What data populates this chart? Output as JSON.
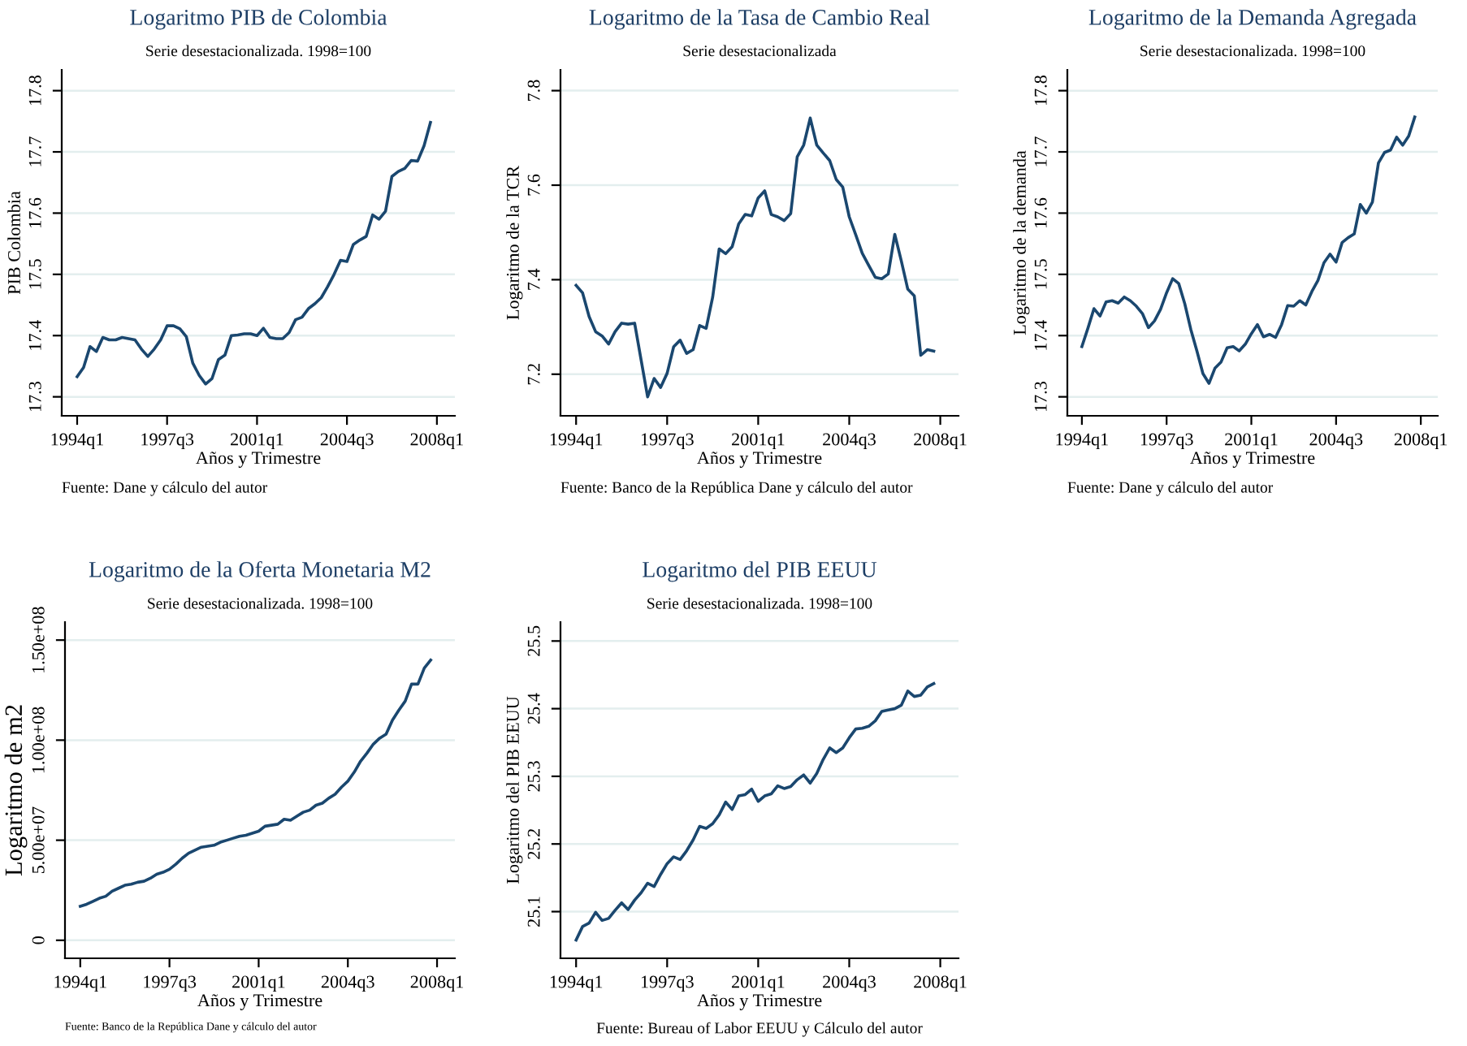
{
  "chart_data": [
    {
      "type": "line",
      "title": "Logaritmo PIB de Colombia",
      "subtitle": "Serie desestacionalizada. 1998=100",
      "xlabel": "Años y Trimestre",
      "ylabel": "PIB Colombia",
      "annotations": [
        "Fuente: Dane y cálculo del autor"
      ],
      "categories": [
        "1994q1",
        null,
        null,
        null,
        null,
        null,
        null,
        null,
        null,
        null,
        null,
        null,
        null,
        null,
        "1997q3",
        null,
        null,
        null,
        null,
        null,
        null,
        null,
        null,
        null,
        null,
        null,
        null,
        null,
        "2001q1",
        null,
        null,
        null,
        null,
        null,
        null,
        null,
        null,
        null,
        null,
        null,
        null,
        null,
        "2004q3",
        null,
        null,
        null,
        null,
        null,
        null,
        null,
        null,
        null,
        null,
        null,
        null,
        null,
        "2008q1"
      ],
      "series": [
        {
          "color": "#1a476f",
          "values": [
            17.333,
            17.348,
            17.382,
            17.374,
            17.397,
            17.393,
            17.393,
            17.397,
            17.395,
            17.393,
            17.378,
            17.366,
            17.378,
            17.393,
            17.416,
            17.416,
            17.411,
            17.398,
            17.355,
            17.335,
            17.321,
            17.33,
            17.361,
            17.368,
            17.4,
            17.401,
            17.403,
            17.403,
            17.4,
            17.412,
            17.397,
            17.395,
            17.395,
            17.405,
            17.426,
            17.43,
            17.444,
            17.452,
            17.462,
            17.48,
            17.5,
            17.523,
            17.521,
            17.549,
            17.556,
            17.562,
            17.597,
            17.59,
            17.603,
            17.66,
            17.668,
            17.673,
            17.686,
            17.685,
            17.71,
            17.748,
            null
          ]
        }
      ],
      "ylim": [
        17.269,
        17.834
      ],
      "yticks": [
        17.3,
        17.4,
        17.5,
        17.6,
        17.7,
        17.8
      ],
      "grid": "y",
      "legend": false
    },
    {
      "type": "line",
      "title": "Logaritmo de la Tasa de Cambio Real",
      "subtitle": "Serie desestacionalizada",
      "xlabel": "Años y Trimestre",
      "ylabel": "Logaritmo de la TCR",
      "annotations": [
        "Fuente: Banco de la República Dane y cálculo del autor"
      ],
      "categories": [
        "1994q1",
        null,
        null,
        null,
        null,
        null,
        null,
        null,
        null,
        null,
        null,
        null,
        null,
        null,
        "1997q3",
        null,
        null,
        null,
        null,
        null,
        null,
        null,
        null,
        null,
        null,
        null,
        null,
        null,
        "2001q1",
        null,
        null,
        null,
        null,
        null,
        null,
        null,
        null,
        null,
        null,
        null,
        null,
        null,
        "2004q3",
        null,
        null,
        null,
        null,
        null,
        null,
        null,
        null,
        null,
        null,
        null,
        null,
        null,
        "2008q1"
      ],
      "series": [
        {
          "color": "#1a476f",
          "values": [
            7.388,
            7.372,
            7.322,
            7.29,
            7.281,
            7.264,
            7.29,
            7.308,
            7.306,
            7.308,
            7.23,
            7.152,
            7.191,
            7.172,
            7.202,
            7.258,
            7.272,
            7.244,
            7.252,
            7.303,
            7.297,
            7.363,
            7.465,
            7.455,
            7.47,
            7.518,
            7.538,
            7.535,
            7.573,
            7.588,
            7.538,
            7.533,
            7.525,
            7.54,
            7.66,
            7.685,
            7.742,
            7.685,
            7.668,
            7.652,
            7.612,
            7.596,
            7.533,
            7.495,
            7.456,
            7.43,
            7.405,
            7.402,
            7.412,
            7.496,
            7.44,
            7.38,
            7.366,
            7.24,
            7.252,
            7.249,
            null
          ]
        }
      ],
      "ylim": [
        7.112,
        7.844
      ],
      "yticks": [
        7.2,
        7.4,
        7.6,
        7.8
      ],
      "grid": "y",
      "legend": false
    },
    {
      "type": "line",
      "title": "Logaritmo de la Demanda Agregada",
      "subtitle": "Serie desestacionalizada. 1998=100",
      "xlabel": "Años y Trimestre",
      "ylabel": "Logaritmo de la demanda",
      "annotations": [
        "Fuente: Dane y cálculo del autor"
      ],
      "categories": [
        "1994q1",
        null,
        null,
        null,
        null,
        null,
        null,
        null,
        null,
        null,
        null,
        null,
        null,
        null,
        "1997q3",
        null,
        null,
        null,
        null,
        null,
        null,
        null,
        null,
        null,
        null,
        null,
        null,
        null,
        "2001q1",
        null,
        null,
        null,
        null,
        null,
        null,
        null,
        null,
        null,
        null,
        null,
        null,
        null,
        "2004q3",
        null,
        null,
        null,
        null,
        null,
        null,
        null,
        null,
        null,
        null,
        null,
        null,
        null,
        "2008q1"
      ],
      "series": [
        {
          "color": "#1a476f",
          "values": [
            17.382,
            17.412,
            17.444,
            17.432,
            17.455,
            17.457,
            17.453,
            17.463,
            17.457,
            17.448,
            17.436,
            17.413,
            17.424,
            17.443,
            17.47,
            17.493,
            17.485,
            17.452,
            17.41,
            17.375,
            17.338,
            17.322,
            17.347,
            17.357,
            17.38,
            17.382,
            17.375,
            17.386,
            17.403,
            17.418,
            17.398,
            17.402,
            17.397,
            17.418,
            17.449,
            17.448,
            17.457,
            17.45,
            17.472,
            17.49,
            17.519,
            17.533,
            17.52,
            17.552,
            17.56,
            17.566,
            17.614,
            17.6,
            17.618,
            17.682,
            17.699,
            17.703,
            17.724,
            17.711,
            17.726,
            17.757,
            null
          ]
        }
      ],
      "ylim": [
        17.269,
        17.834
      ],
      "yticks": [
        17.3,
        17.4,
        17.5,
        17.6,
        17.7,
        17.8
      ],
      "grid": "y",
      "legend": false
    },
    {
      "type": "line",
      "title": "Logaritmo de la Oferta Monetaria M2",
      "subtitle": "Serie desestacionalizada. 1998=100",
      "xlabel": "Años y Trimestre",
      "ylabel": "Logaritmo de m2",
      "annotations": [
        "Fuente: Banco de la República Dane y cálculo del autor"
      ],
      "categories": [
        "1994q1",
        null,
        null,
        null,
        null,
        null,
        null,
        null,
        null,
        null,
        null,
        null,
        null,
        null,
        "1997q3",
        null,
        null,
        null,
        null,
        null,
        null,
        null,
        null,
        null,
        null,
        null,
        null,
        null,
        "2001q1",
        null,
        null,
        null,
        null,
        null,
        null,
        null,
        null,
        null,
        null,
        null,
        null,
        null,
        "2004q3",
        null,
        null,
        null,
        null,
        null,
        null,
        null,
        null,
        null,
        null,
        null,
        null,
        null,
        "2008q1"
      ],
      "series": [
        {
          "color": "#1a476f",
          "values": [
            17000000,
            18000000,
            19500000,
            21000000,
            22000000,
            24500000,
            26000000,
            27500000,
            28000000,
            29000000,
            29500000,
            31000000,
            33000000,
            34000000,
            35500000,
            38000000,
            41000000,
            43500000,
            45000000,
            46500000,
            47000000,
            47500000,
            49000000,
            50000000,
            51000000,
            52000000,
            52500000,
            53500000,
            54500000,
            57000000,
            57500000,
            58000000,
            60500000,
            60000000,
            62000000,
            64000000,
            65000000,
            67500000,
            68500000,
            71000000,
            73000000,
            76500000,
            79500000,
            84000000,
            89500000,
            93500000,
            98000000,
            101000000,
            103000000,
            110000000,
            115000000,
            119500000,
            128000000,
            128000000,
            136000000,
            140000000,
            null
          ]
        }
      ],
      "ylim": [
        -9000000,
        159000000
      ],
      "yticks": [
        0,
        {
          "value": 50000000,
          "label": "5.00e+07"
        },
        {
          "value": 100000000,
          "label": "1.00e+08"
        },
        {
          "value": 150000000,
          "label": "1.50e+08"
        }
      ],
      "grid": "y",
      "legend": false
    },
    {
      "type": "line",
      "title": "Logaritmo del PIB EEUU",
      "subtitle": "Serie desestacionalizada. 1998=100",
      "xlabel": "Años y Trimestre",
      "ylabel": "Logaritmo del PIB EEUU",
      "annotations": [
        "Fuente: Bureau of Labor EEUU y Cálculo del autor"
      ],
      "categories": [
        "1994q1",
        null,
        null,
        null,
        null,
        null,
        null,
        null,
        null,
        null,
        null,
        null,
        null,
        null,
        "1997q3",
        null,
        null,
        null,
        null,
        null,
        null,
        null,
        null,
        null,
        null,
        null,
        null,
        null,
        "2001q1",
        null,
        null,
        null,
        null,
        null,
        null,
        null,
        null,
        null,
        null,
        null,
        null,
        null,
        "2004q3",
        null,
        null,
        null,
        null,
        null,
        null,
        null,
        null,
        null,
        null,
        null,
        null,
        null,
        "2008q1"
      ],
      "series": [
        {
          "color": "#1a476f",
          "values": [
            25.058,
            25.078,
            25.083,
            25.099,
            25.087,
            25.09,
            25.102,
            25.113,
            25.103,
            25.117,
            25.128,
            25.142,
            25.137,
            25.155,
            25.171,
            25.181,
            25.177,
            25.19,
            25.206,
            25.226,
            25.223,
            25.23,
            25.243,
            25.262,
            25.251,
            25.271,
            25.273,
            25.281,
            25.263,
            25.271,
            25.274,
            25.286,
            25.282,
            25.285,
            25.295,
            25.302,
            25.29,
            25.304,
            25.325,
            25.342,
            25.335,
            25.342,
            25.357,
            25.37,
            25.371,
            25.374,
            25.382,
            25.396,
            25.398,
            25.4,
            25.405,
            25.426,
            25.418,
            25.42,
            25.432,
            25.437,
            null
          ]
        }
      ],
      "ylim": [
        25.031,
        25.528
      ],
      "yticks": [
        25.1,
        25.2,
        25.3,
        25.4,
        25.5
      ],
      "grid": "y",
      "legend": false
    }
  ]
}
